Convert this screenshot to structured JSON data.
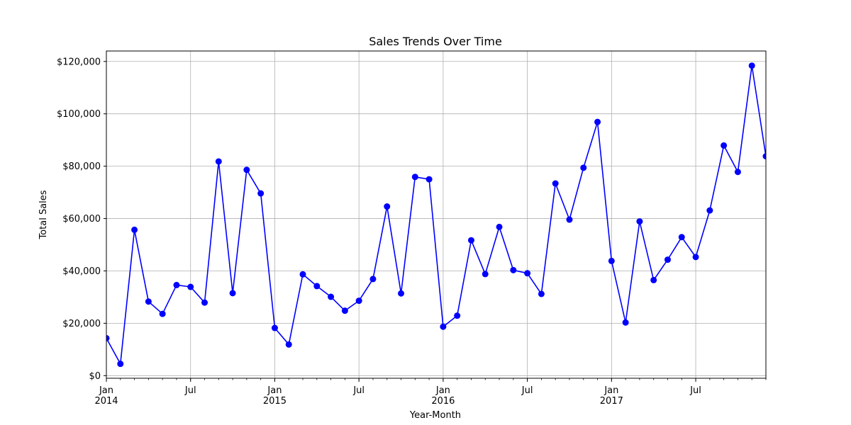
{
  "chart_data": {
    "type": "line",
    "title": "Sales Trends Over Time",
    "xlabel": "Year-Month",
    "ylabel": "Total Sales",
    "x": [
      "2014-01",
      "2014-02",
      "2014-03",
      "2014-04",
      "2014-05",
      "2014-06",
      "2014-07",
      "2014-08",
      "2014-09",
      "2014-10",
      "2014-11",
      "2014-12",
      "2015-01",
      "2015-02",
      "2015-03",
      "2015-04",
      "2015-05",
      "2015-06",
      "2015-07",
      "2015-08",
      "2015-09",
      "2015-10",
      "2015-11",
      "2015-12",
      "2016-01",
      "2016-02",
      "2016-03",
      "2016-04",
      "2016-05",
      "2016-06",
      "2016-07",
      "2016-08",
      "2016-09",
      "2016-10",
      "2016-11",
      "2016-12",
      "2017-01",
      "2017-02",
      "2017-03",
      "2017-04",
      "2017-05",
      "2017-06",
      "2017-07",
      "2017-08",
      "2017-09",
      "2017-10",
      "2017-11",
      "2017-12"
    ],
    "series": [
      {
        "values": [
          14300,
          4500,
          55700,
          28300,
          23600,
          34600,
          33900,
          27900,
          81800,
          31500,
          78600,
          69600,
          18200,
          11900,
          38700,
          34200,
          30100,
          24800,
          28600,
          36900,
          64600,
          31400,
          75900,
          75000,
          18700,
          22900,
          51700,
          38800,
          56800,
          40300,
          39100,
          31200,
          73400,
          59600,
          79400,
          96900,
          43800,
          20300,
          58900,
          36500,
          44300,
          52900,
          45300,
          63100,
          87900,
          77800,
          118400,
          83800
        ],
        "color": "#0000ff"
      }
    ],
    "ylim": [
      -1000,
      124000
    ],
    "yticks": [
      0,
      20000,
      40000,
      60000,
      80000,
      100000,
      120000
    ],
    "ytick_labels": [
      "$0",
      "$20,000",
      "$40,000",
      "$60,000",
      "$80,000",
      "$100,000",
      "$120,000"
    ],
    "xticks_major": [
      {
        "x": "2014-01",
        "label": "Jan",
        "year": "2014"
      },
      {
        "x": "2014-07",
        "label": "Jul",
        "year": ""
      },
      {
        "x": "2015-01",
        "label": "Jan",
        "year": "2015"
      },
      {
        "x": "2015-07",
        "label": "Jul",
        "year": ""
      },
      {
        "x": "2016-01",
        "label": "Jan",
        "year": "2016"
      },
      {
        "x": "2016-07",
        "label": "Jul",
        "year": ""
      },
      {
        "x": "2017-01",
        "label": "Jan",
        "year": "2017"
      },
      {
        "x": "2017-07",
        "label": "Jul",
        "year": ""
      }
    ],
    "grid": true,
    "legend": "none"
  }
}
